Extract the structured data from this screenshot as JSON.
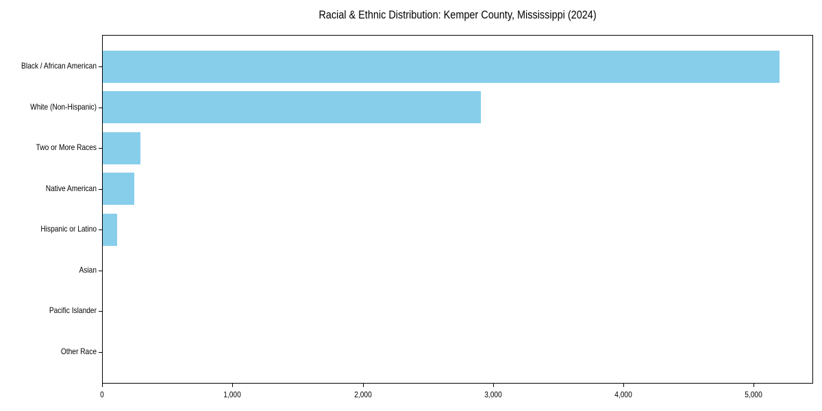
{
  "chart_data": {
    "type": "bar",
    "orientation": "horizontal",
    "title": "Racial & Ethnic Distribution: Kemper County, Mississippi (2024)",
    "xlabel": "",
    "ylabel": "",
    "categories": [
      "Black / African American",
      "White (Non-Hispanic)",
      "Two or More Races",
      "Native American",
      "Hispanic or Latino",
      "Asian",
      "Pacific Islander",
      "Other Race"
    ],
    "values": [
      5190,
      2900,
      290,
      240,
      110,
      0,
      0,
      0
    ],
    "xlim": [
      0,
      5455
    ],
    "x_ticks": [
      0,
      1000,
      2000,
      3000,
      4000,
      5000
    ],
    "x_tick_labels": [
      "0",
      "1,000",
      "2,000",
      "3,000",
      "4,000",
      "5,000"
    ],
    "bar_color": "#87CEEB",
    "axis_color": "#000000",
    "text_color": "#000000",
    "background_color": "#ffffff",
    "grid": false,
    "legend": null
  }
}
